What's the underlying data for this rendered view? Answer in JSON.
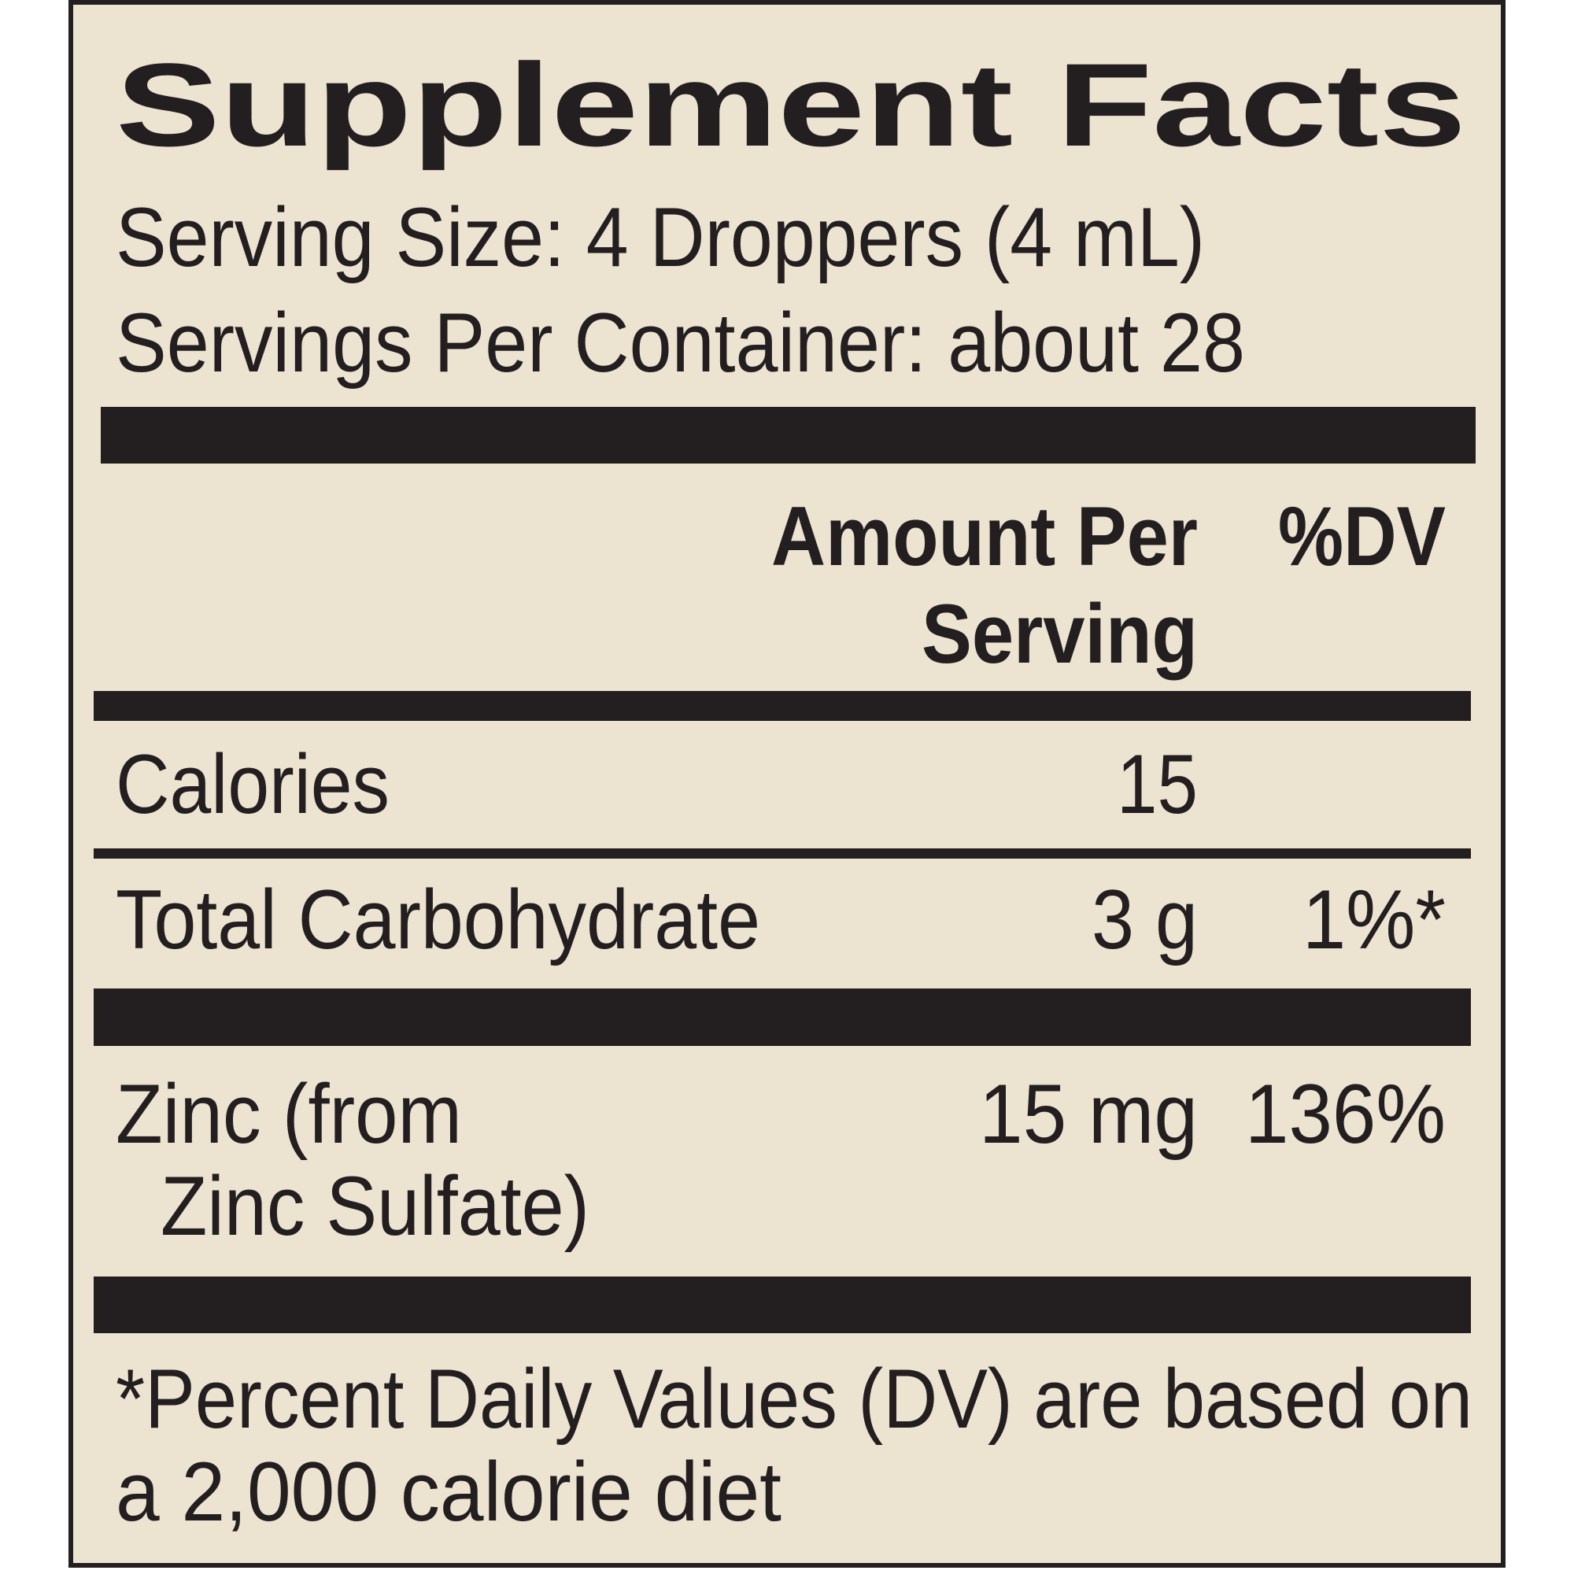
{
  "header": {
    "title": "Supplement Facts",
    "serving_size": "Serving Size: 4 Droppers (4 mL)",
    "servings_per_container": "Servings Per Container: about 28"
  },
  "table": {
    "columns": {
      "amount": [
        "Amount Per",
        "Serving"
      ],
      "dv": "%DV"
    },
    "rows": [
      {
        "name": [
          "Calories"
        ],
        "amount": "15"
      },
      {
        "name": [
          "Total Carbohydrate"
        ],
        "amount": "3 g",
        "dv": "1%*"
      },
      {
        "name": [
          "Zinc (from",
          "Zinc Sulfate)"
        ],
        "amount": "15 mg",
        "dv": "136%"
      }
    ]
  },
  "footnote": [
    "*Percent Daily Values (DV) are based on",
    "a 2,000 calorie diet"
  ]
}
